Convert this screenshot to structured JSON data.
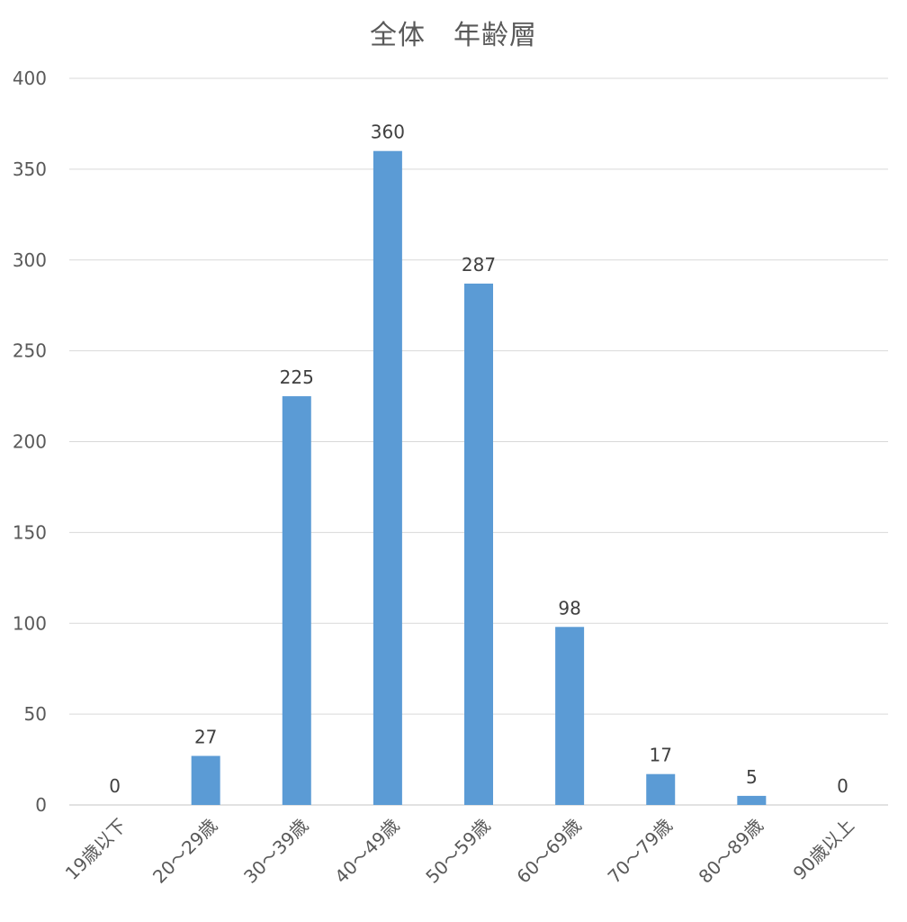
{
  "chart_data": {
    "type": "bar",
    "title": "全体　年齢層",
    "categories": [
      "19歳以下",
      "20～29歳",
      "30～39歳",
      "40～49歳",
      "50～59歳",
      "60～69歳",
      "70～79歳",
      "80～89歳",
      "90歳以上"
    ],
    "values": [
      0,
      27,
      225,
      360,
      287,
      98,
      17,
      5,
      0
    ],
    "ylim": [
      0,
      400
    ],
    "yticks": [
      0,
      50,
      100,
      150,
      200,
      250,
      300,
      350,
      400
    ],
    "xlabel": "",
    "ylabel": "",
    "grid": true,
    "legend": "none",
    "data_labels": true,
    "bar_color": "#5b9bd5",
    "grid_color": "#d9d9d9"
  }
}
